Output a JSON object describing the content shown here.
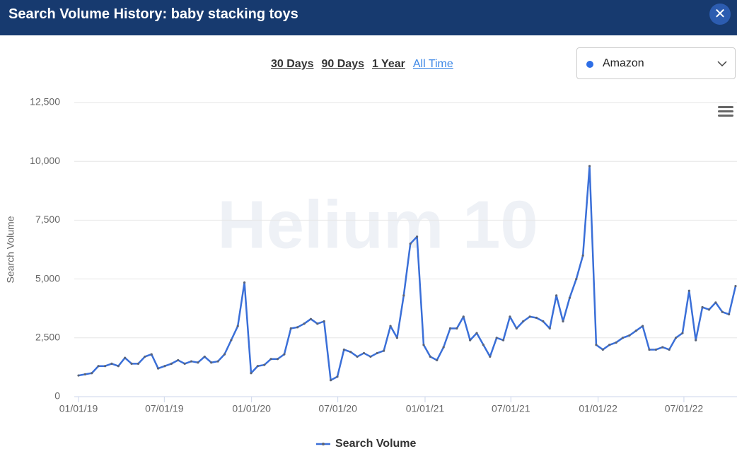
{
  "header": {
    "title": "Search Volume History: baby stacking toys"
  },
  "ranges": [
    "30 Days",
    "90 Days",
    "1 Year",
    "All Time"
  ],
  "active_range": "All Time",
  "marketplace": "Amazon",
  "watermark": "Helium 10",
  "chart_data": {
    "type": "line",
    "ylabel": "Search Volume",
    "x": [
      "01/01/19",
      "01/15/19",
      "01/29/19",
      "02/12/19",
      "02/26/19",
      "03/12/19",
      "03/26/19",
      "04/09/19",
      "04/23/19",
      "05/07/19",
      "05/21/19",
      "06/04/19",
      "06/18/19",
      "07/02/19",
      "07/16/19",
      "07/30/19",
      "08/13/19",
      "08/27/19",
      "09/10/19",
      "09/24/19",
      "10/08/19",
      "10/22/19",
      "11/05/19",
      "11/19/19",
      "12/03/19",
      "12/17/19",
      "12/31/19",
      "01/14/20",
      "01/28/20",
      "02/11/20",
      "02/25/20",
      "03/10/20",
      "03/24/20",
      "04/07/20",
      "04/21/20",
      "05/05/20",
      "05/19/20",
      "06/02/20",
      "06/16/20",
      "06/30/20",
      "07/14/20",
      "07/28/20",
      "08/11/20",
      "08/25/20",
      "09/08/20",
      "09/22/20",
      "10/06/20",
      "10/20/20",
      "11/03/20",
      "11/17/20",
      "12/01/20",
      "12/15/20",
      "12/29/20",
      "01/12/21",
      "01/26/21",
      "02/09/21",
      "02/23/21",
      "03/09/21",
      "03/23/21",
      "04/06/21",
      "04/20/21",
      "05/04/21",
      "05/18/21",
      "06/01/21",
      "06/15/21",
      "06/29/21",
      "07/13/21",
      "07/27/21",
      "08/10/21",
      "08/24/21",
      "09/07/21",
      "09/21/21",
      "10/05/21",
      "10/19/21",
      "11/02/21",
      "11/16/21",
      "11/30/21",
      "12/14/21",
      "12/28/21",
      "01/11/22",
      "01/25/22",
      "02/08/22",
      "02/22/22",
      "03/08/22",
      "03/22/22",
      "04/05/22",
      "04/19/22",
      "05/03/22",
      "05/17/22",
      "05/31/22",
      "06/14/22",
      "06/28/22",
      "07/12/22",
      "07/26/22",
      "08/09/22",
      "08/23/22",
      "09/06/22",
      "09/20/22",
      "10/04/22",
      "10/18/22"
    ],
    "series": [
      {
        "name": "Search Volume",
        "color": "#3a6fd8",
        "marker_color": "#5a6478",
        "values": [
          900,
          950,
          1000,
          1300,
          1300,
          1400,
          1300,
          1650,
          1400,
          1400,
          1700,
          1800,
          1200,
          1300,
          1400,
          1550,
          1400,
          1500,
          1450,
          1700,
          1450,
          1500,
          1800,
          2400,
          3000,
          4850,
          1000,
          1300,
          1350,
          1600,
          1600,
          1800,
          2900,
          2950,
          3100,
          3300,
          3100,
          3200,
          700,
          850,
          2000,
          1900,
          1700,
          1850,
          1700,
          1850,
          1950,
          3000,
          2500,
          4300,
          6500,
          6800,
          2200,
          1700,
          1550,
          2100,
          2900,
          2900,
          3400,
          2400,
          2700,
          2200,
          1700,
          2500,
          2400,
          3400,
          2900,
          3200,
          3400,
          3350,
          3200,
          2900,
          4300,
          3200,
          4200,
          5000,
          6000,
          9800,
          2200,
          2000,
          2200,
          2300,
          2500,
          2600,
          2800,
          3000,
          2000,
          2000,
          2100,
          2000,
          2500,
          2700,
          4500,
          2400,
          3800,
          3700,
          4000,
          3600,
          3500,
          4700
        ]
      }
    ],
    "xlim": [
      "01/01/19",
      "10/18/22"
    ],
    "xticks": [
      "01/01/19",
      "07/01/19",
      "01/01/20",
      "07/01/20",
      "01/01/21",
      "07/01/21",
      "01/01/22",
      "07/01/22"
    ],
    "ylim": [
      0,
      12500
    ],
    "yticks": [
      0,
      {
        "value": 2500,
        "label": "2,500"
      },
      {
        "value": 5000,
        "label": "5,000"
      },
      {
        "value": 7500,
        "label": "7,500"
      },
      {
        "value": 10000,
        "label": "10,000"
      },
      {
        "value": 12500,
        "label": "12,500"
      }
    ],
    "grid": true,
    "legend": "bottom"
  }
}
